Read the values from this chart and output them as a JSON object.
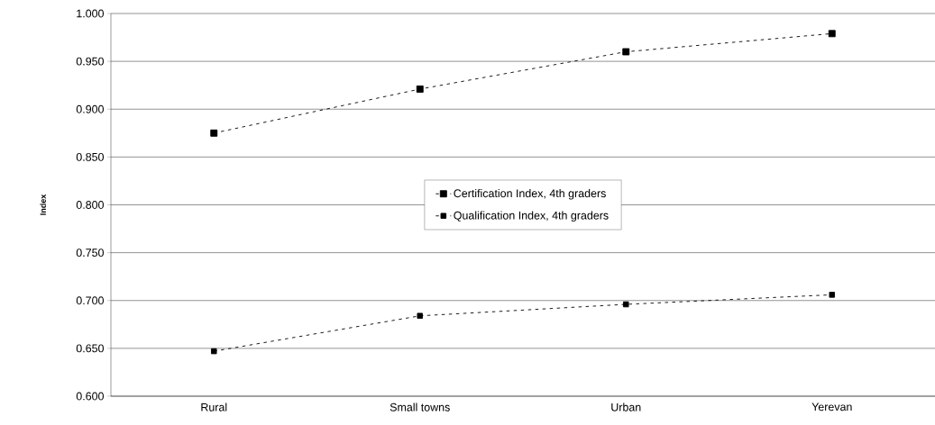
{
  "chart_data": {
    "type": "line",
    "ylabel": "Index",
    "categories": [
      "Rural",
      "Small towns",
      "Urban",
      "Yerevan"
    ],
    "series": [
      {
        "name": "Certification Index, 4th graders",
        "color": "#000000",
        "values": [
          0.875,
          0.921,
          0.96,
          0.979
        ]
      },
      {
        "name": "Qualification Index, 4th graders",
        "color": "#000000",
        "values": [
          0.647,
          0.684,
          0.696,
          0.706
        ]
      }
    ],
    "ylim": [
      0.6,
      1.0
    ],
    "yticks": [
      {
        "value": 0.6,
        "label": "0.600"
      },
      {
        "value": 0.65,
        "label": "0.650"
      },
      {
        "value": 0.7,
        "label": "0.700"
      },
      {
        "value": 0.75,
        "label": "0.750"
      },
      {
        "value": 0.8,
        "label": "0.800"
      },
      {
        "value": 0.85,
        "label": "0.850"
      },
      {
        "value": 0.9,
        "label": "0.900"
      },
      {
        "value": 0.95,
        "label": "0.950"
      },
      {
        "value": 1.0,
        "label": "1.000"
      }
    ],
    "grid": "y",
    "legend": "center",
    "marker": "square",
    "line_style": "dashed"
  }
}
